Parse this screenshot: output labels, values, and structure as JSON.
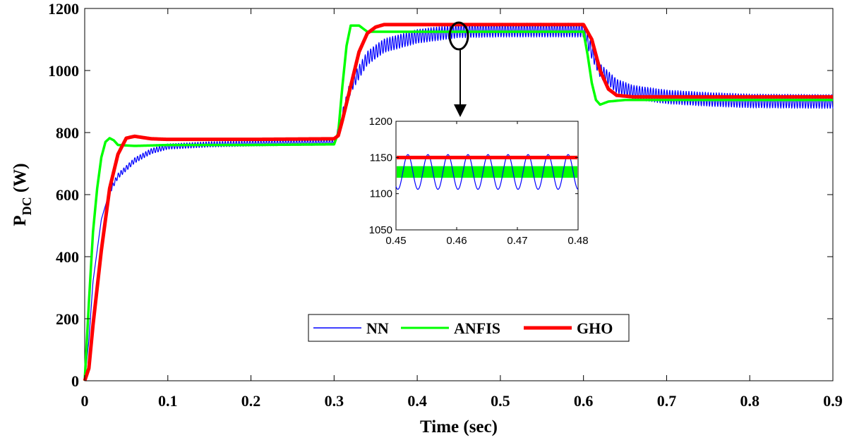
{
  "chart_data": {
    "type": "line",
    "xlabel": "Time  (sec)",
    "ylabel_main": "P",
    "ylabel_sub": "DC",
    "ylabel_unit": " (W)",
    "xlim": [
      0,
      0.9
    ],
    "ylim": [
      0,
      1200
    ],
    "x_ticks": [
      "0",
      "0.1",
      "0.2",
      "0.3",
      "0.4",
      "0.5",
      "0.6",
      "0.7",
      "0.8",
      "0.9"
    ],
    "y_ticks": [
      "0",
      "200",
      "400",
      "600",
      "800",
      "1000",
      "1200"
    ],
    "grid": false,
    "legend_position": "bottom-center",
    "colors": {
      "NN": "#0000ff",
      "ANFIS": "#00ff00",
      "GHO": "#ff0000"
    },
    "series": [
      {
        "name": "NN",
        "key": "nn",
        "points": [
          [
            0,
            0
          ],
          [
            0.005,
            130
          ],
          [
            0.01,
            320
          ],
          [
            0.02,
            520
          ],
          [
            0.03,
            610
          ],
          [
            0.04,
            660
          ],
          [
            0.06,
            710
          ],
          [
            0.08,
            740
          ],
          [
            0.1,
            755
          ],
          [
            0.15,
            762
          ],
          [
            0.2,
            765
          ],
          [
            0.25,
            767
          ],
          [
            0.3,
            768
          ],
          [
            0.31,
            850
          ],
          [
            0.32,
            950
          ],
          [
            0.34,
            1040
          ],
          [
            0.36,
            1080
          ],
          [
            0.4,
            1110
          ],
          [
            0.45,
            1128
          ],
          [
            0.5,
            1130
          ],
          [
            0.55,
            1130
          ],
          [
            0.6,
            1130
          ],
          [
            0.61,
            1060
          ],
          [
            0.62,
            1000
          ],
          [
            0.64,
            950
          ],
          [
            0.66,
            930
          ],
          [
            0.7,
            915
          ],
          [
            0.75,
            907
          ],
          [
            0.8,
            902
          ],
          [
            0.9,
            900
          ]
        ],
        "oscillation_amplitude": 25
      },
      {
        "name": "ANFIS",
        "key": "anfis",
        "points": [
          [
            0,
            0
          ],
          [
            0.005,
            250
          ],
          [
            0.01,
            480
          ],
          [
            0.015,
            620
          ],
          [
            0.02,
            720
          ],
          [
            0.025,
            770
          ],
          [
            0.03,
            782
          ],
          [
            0.035,
            775
          ],
          [
            0.04,
            760
          ],
          [
            0.06,
            757
          ],
          [
            0.1,
            760
          ],
          [
            0.2,
            760
          ],
          [
            0.3,
            762
          ],
          [
            0.305,
            800
          ],
          [
            0.31,
            950
          ],
          [
            0.315,
            1080
          ],
          [
            0.32,
            1145
          ],
          [
            0.33,
            1145
          ],
          [
            0.34,
            1125
          ],
          [
            0.4,
            1125
          ],
          [
            0.5,
            1125
          ],
          [
            0.6,
            1125
          ],
          [
            0.605,
            1050
          ],
          [
            0.61,
            960
          ],
          [
            0.615,
            905
          ],
          [
            0.62,
            890
          ],
          [
            0.63,
            900
          ],
          [
            0.65,
            905
          ],
          [
            0.7,
            905
          ],
          [
            0.9,
            905
          ]
        ]
      },
      {
        "name": "GHO",
        "key": "gho",
        "points": [
          [
            0,
            0
          ],
          [
            0.005,
            40
          ],
          [
            0.01,
            180
          ],
          [
            0.02,
            420
          ],
          [
            0.03,
            620
          ],
          [
            0.04,
            730
          ],
          [
            0.05,
            782
          ],
          [
            0.06,
            788
          ],
          [
            0.08,
            780
          ],
          [
            0.1,
            778
          ],
          [
            0.2,
            778
          ],
          [
            0.3,
            780
          ],
          [
            0.305,
            790
          ],
          [
            0.31,
            840
          ],
          [
            0.32,
            950
          ],
          [
            0.33,
            1060
          ],
          [
            0.34,
            1120
          ],
          [
            0.35,
            1140
          ],
          [
            0.36,
            1148
          ],
          [
            0.4,
            1148
          ],
          [
            0.5,
            1148
          ],
          [
            0.6,
            1148
          ],
          [
            0.61,
            1100
          ],
          [
            0.62,
            1000
          ],
          [
            0.63,
            940
          ],
          [
            0.64,
            920
          ],
          [
            0.66,
            915
          ],
          [
            0.7,
            915
          ],
          [
            0.9,
            915
          ]
        ]
      }
    ],
    "inset": {
      "xlim": [
        0.45,
        0.48
      ],
      "ylim": [
        1050,
        1200
      ],
      "x_ticks": [
        "0.45",
        "0.46",
        "0.47",
        "0.48"
      ],
      "y_ticks": [
        "1050",
        "1100",
        "1150",
        "1200"
      ],
      "series": [
        {
          "name": "NN",
          "center": 1130,
          "amplitude": 24,
          "period": 0.0033
        },
        {
          "name": "ANFIS",
          "center": 1130,
          "band": [
            1122,
            1138
          ]
        },
        {
          "name": "GHO",
          "center": 1150
        }
      ],
      "source_region": {
        "x": 0.46,
        "y": 1150
      }
    }
  }
}
